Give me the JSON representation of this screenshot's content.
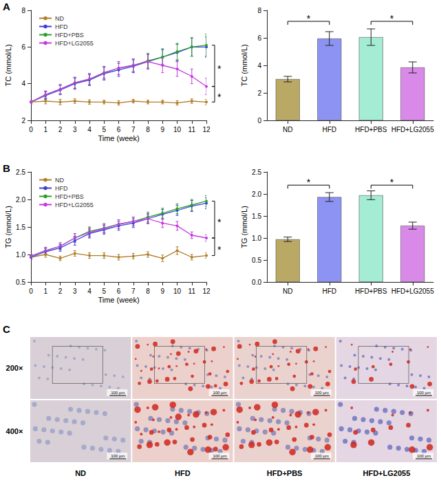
{
  "chart_data": [
    {
      "panel": "A",
      "type": "line",
      "x_label": "Time (week)",
      "y_label": "TC (mmol/L)",
      "x": [
        0,
        1,
        2,
        3,
        4,
        5,
        6,
        7,
        8,
        9,
        10,
        11,
        12
      ],
      "xlim": [
        0,
        12
      ],
      "xticks": [
        0,
        1,
        2,
        3,
        4,
        5,
        6,
        7,
        8,
        9,
        10,
        11,
        12
      ],
      "ylim": [
        2,
        8
      ],
      "yticks": [
        2,
        4,
        6,
        8
      ],
      "grid": false,
      "legend": "top-left",
      "marker": "circle",
      "series": [
        {
          "name": "ND",
          "color": "#b07f2a",
          "values": [
            3.0,
            3.05,
            3.0,
            3.05,
            3.0,
            3.0,
            2.95,
            3.05,
            3.0,
            3.0,
            2.95,
            3.05,
            3.0
          ],
          "errors": [
            0.1,
            0.15,
            0.15,
            0.12,
            0.12,
            0.1,
            0.12,
            0.1,
            0.1,
            0.1,
            0.12,
            0.12,
            0.15
          ]
        },
        {
          "name": "HFD",
          "color": "#3a3fd8",
          "values": [
            3.0,
            3.35,
            3.65,
            4.0,
            4.2,
            4.55,
            4.75,
            4.95,
            5.2,
            5.45,
            5.7,
            6.0,
            6.0
          ],
          "errors": [
            0.1,
            0.2,
            0.25,
            0.3,
            0.3,
            0.35,
            0.35,
            0.35,
            0.4,
            0.45,
            0.45,
            0.5,
            0.55
          ]
        },
        {
          "name": "HFD+PBS",
          "color": "#2ca02c",
          "values": [
            3.0,
            3.4,
            3.7,
            4.05,
            4.25,
            4.6,
            4.85,
            5.0,
            5.25,
            5.45,
            5.75,
            6.0,
            6.1
          ],
          "errors": [
            0.1,
            0.2,
            0.25,
            0.3,
            0.3,
            0.3,
            0.35,
            0.35,
            0.4,
            0.4,
            0.45,
            0.5,
            0.6
          ]
        },
        {
          "name": "HFD+LG2055",
          "color": "#c23be0",
          "values": [
            3.0,
            3.4,
            3.7,
            4.05,
            4.25,
            4.6,
            4.85,
            5.0,
            5.2,
            5.0,
            4.8,
            4.4,
            3.85
          ],
          "errors": [
            0.1,
            0.2,
            0.25,
            0.3,
            0.3,
            0.35,
            0.35,
            0.35,
            0.4,
            0.4,
            0.4,
            0.4,
            0.45
          ]
        }
      ],
      "significance": [
        {
          "x": 12,
          "y": [
            6.1,
            3.85
          ],
          "label": "*"
        },
        {
          "x": 12,
          "y": [
            3.85,
            3.0
          ],
          "label": "*"
        }
      ]
    },
    {
      "panel": "A",
      "type": "bar",
      "y_label": "TC (mmol/L)",
      "categories": [
        "ND",
        "HFD",
        "HFD+PBS",
        "HFD+LG2055"
      ],
      "values": [
        3.0,
        5.95,
        6.05,
        3.85
      ],
      "errors": [
        0.2,
        0.5,
        0.6,
        0.4
      ],
      "colors": [
        "#b9a964",
        "#8c93f2",
        "#a4ecd4",
        "#d98ae8"
      ],
      "ylim": [
        0,
        8
      ],
      "yticks": [
        0,
        2,
        4,
        6,
        8
      ],
      "grid": false,
      "significance": [
        {
          "categories": [
            "ND",
            "HFD"
          ],
          "y": 7.2,
          "label": "*"
        },
        {
          "categories": [
            "HFD+PBS",
            "HFD+LG2055"
          ],
          "y": 7.2,
          "label": "*"
        }
      ]
    },
    {
      "panel": "B",
      "type": "line",
      "x_label": "Time (week)",
      "y_label": "TG (mmol/L)",
      "x": [
        0,
        1,
        2,
        3,
        4,
        5,
        6,
        7,
        8,
        9,
        10,
        11,
        12
      ],
      "xlim": [
        0,
        12
      ],
      "xticks": [
        0,
        1,
        2,
        3,
        4,
        5,
        6,
        7,
        8,
        9,
        10,
        11,
        12
      ],
      "ylim": [
        0.5,
        2.5
      ],
      "yticks": [
        0.5,
        {
          "value": 1,
          "label": "1.0"
        },
        1.5,
        {
          "value": 2,
          "label": "2.0"
        },
        2.5
      ],
      "grid": false,
      "legend": "top-left",
      "marker": "circle",
      "series": [
        {
          "name": "ND",
          "color": "#b07f2a",
          "values": [
            0.95,
            1.0,
            0.93,
            1.02,
            0.98,
            0.98,
            0.95,
            0.97,
            1.0,
            0.93,
            1.07,
            0.95,
            0.98
          ],
          "errors": [
            0.04,
            0.05,
            0.04,
            0.05,
            0.05,
            0.05,
            0.05,
            0.05,
            0.05,
            0.06,
            0.07,
            0.05,
            0.05
          ]
        },
        {
          "name": "HFD",
          "color": "#3a3fd8",
          "values": [
            0.95,
            1.05,
            1.12,
            1.25,
            1.38,
            1.45,
            1.52,
            1.57,
            1.65,
            1.73,
            1.8,
            1.88,
            1.93
          ],
          "errors": [
            0.04,
            0.06,
            0.06,
            0.08,
            0.08,
            0.08,
            0.08,
            0.08,
            0.09,
            0.09,
            0.09,
            0.1,
            0.1
          ]
        },
        {
          "name": "HFD+PBS",
          "color": "#2ca02c",
          "values": [
            0.97,
            1.07,
            1.15,
            1.3,
            1.42,
            1.48,
            1.55,
            1.6,
            1.68,
            1.75,
            1.83,
            1.9,
            1.97
          ],
          "errors": [
            0.04,
            0.06,
            0.06,
            0.08,
            0.08,
            0.08,
            0.08,
            0.08,
            0.09,
            0.09,
            0.09,
            0.1,
            0.1
          ]
        },
        {
          "name": "HFD+LG2055",
          "color": "#c23be0",
          "values": [
            0.97,
            1.07,
            1.15,
            1.3,
            1.4,
            1.47,
            1.55,
            1.6,
            1.65,
            1.57,
            1.52,
            1.35,
            1.3
          ],
          "errors": [
            0.04,
            0.06,
            0.06,
            0.08,
            0.08,
            0.08,
            0.08,
            0.08,
            0.08,
            0.08,
            0.08,
            0.06,
            0.06
          ]
        }
      ],
      "significance": [
        {
          "x": 12,
          "y": [
            1.97,
            1.3
          ],
          "label": "*"
        },
        {
          "x": 12,
          "y": [
            1.3,
            0.98
          ],
          "label": "*"
        }
      ]
    },
    {
      "panel": "B",
      "type": "bar",
      "y_label": "TG (mmol/L)",
      "categories": [
        "ND",
        "HFD",
        "HFD+PBS",
        "HFD+LG2055"
      ],
      "values": [
        0.97,
        1.93,
        1.97,
        1.28
      ],
      "errors": [
        0.05,
        0.1,
        0.1,
        0.08
      ],
      "colors": [
        "#b9a964",
        "#8c93f2",
        "#a4ecd4",
        "#d98ae8"
      ],
      "ylim": [
        0,
        2.5
      ],
      "yticks": [
        {
          "value": 0,
          "label": "0.0"
        },
        0.5,
        {
          "value": 1,
          "label": "1.0"
        },
        1.5,
        {
          "value": 2,
          "label": "2.0"
        },
        2.5
      ],
      "grid": false,
      "significance": [
        {
          "categories": [
            "ND",
            "HFD"
          ],
          "y": 2.2,
          "label": "*"
        },
        {
          "categories": [
            "HFD+PBS",
            "HFD+LG2055"
          ],
          "y": 2.2,
          "label": "*"
        }
      ]
    }
  ],
  "panel_c": {
    "letter": "C",
    "row_labels": [
      "200×",
      "400×"
    ],
    "column_labels": [
      "ND",
      "HFD",
      "HFD+PBS",
      "HFD+LG2055"
    ],
    "scale_bar_label": "100 µm"
  }
}
